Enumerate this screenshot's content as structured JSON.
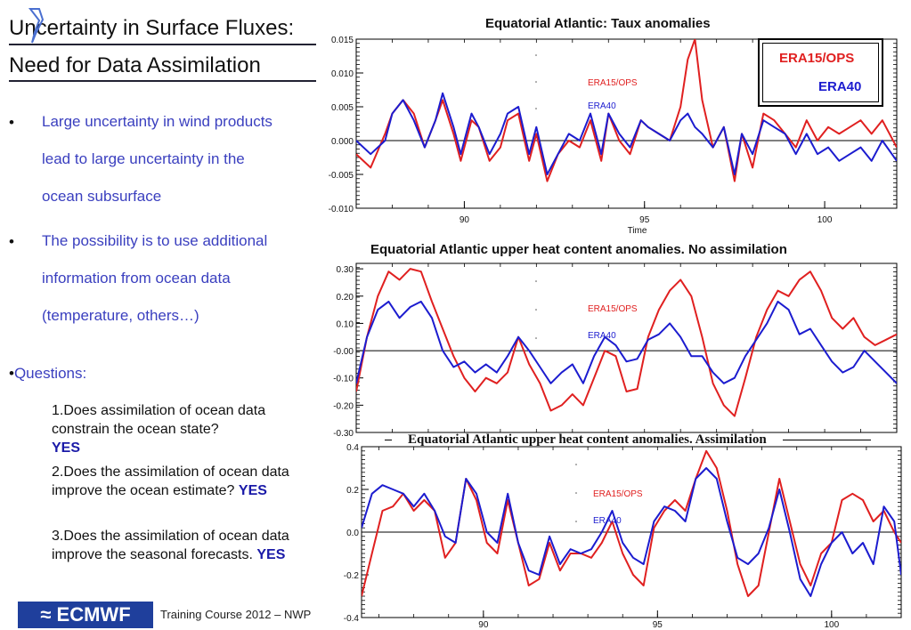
{
  "slide": {
    "title_line1": "Uncertainty in Surface Fluxes:",
    "title_line2": "Need for Data Assimilation",
    "bullets": [
      {
        "lines": [
          "Large uncertainty in wind products",
          "lead to large uncertainty in the",
          "ocean subsurface"
        ]
      },
      {
        "lines": [
          "The possibility is to use  additional",
          "information from ocean data",
          "(temperature, others…)"
        ]
      }
    ],
    "bullet_glyph": "•",
    "questions_label": "Questions:",
    "questions": [
      {
        "text": "1.Does assimilation of ocean data constrain the ocean state?",
        "answer": "YES"
      },
      {
        "text": "2.Does the assimilation of ocean data improve the ocean estimate?",
        "answer": "YES"
      },
      {
        "text": "3.Does the assimilation of ocean data  improve the seasonal forecasts.",
        "answer": "YES"
      }
    ],
    "footer_logo": "ECMWF",
    "footer_text": "Training Course 2012 – NWP"
  },
  "colors": {
    "era15": "#e02020",
    "era40": "#1c1ccf",
    "text_blue": "#3a3fbf",
    "logo_bg": "#1f3f9c"
  },
  "legend_box": {
    "entries": [
      {
        "name": "ERA15/OPS",
        "color": "#e02020"
      },
      {
        "name": "ERA40",
        "color": "#1c1ccf"
      }
    ]
  },
  "chart_data": [
    {
      "type": "line",
      "title": "Equatorial Atlantic: Taux anomalies",
      "xlabel": "Time",
      "ylabel": "",
      "xlim": [
        87,
        102
      ],
      "ylim": [
        -0.01,
        0.015
      ],
      "xticks": [
        90,
        95,
        100
      ],
      "xtick_labels": [
        "90",
        "95",
        "100"
      ],
      "yticks": [
        -0.01,
        -0.005,
        0.0,
        0.005,
        0.01,
        0.015
      ],
      "ytick_labels": [
        "-0.010",
        "-0.005",
        "0.000",
        "0.005",
        "0.010",
        "0.015"
      ],
      "zero_line": true,
      "series": [
        {
          "name": "ERA15/OPS",
          "color": "#e02020",
          "x": [
            87.0,
            87.4,
            87.8,
            88.0,
            88.3,
            88.6,
            88.9,
            89.2,
            89.4,
            89.7,
            89.9,
            90.2,
            90.4,
            90.7,
            91.0,
            91.2,
            91.5,
            91.8,
            92.0,
            92.3,
            92.6,
            92.9,
            93.2,
            93.5,
            93.8,
            94.0,
            94.3,
            94.6,
            94.9,
            95.1,
            95.4,
            95.7,
            96.0,
            96.2,
            96.4,
            96.6,
            96.9,
            97.2,
            97.5,
            97.7,
            98.0,
            98.3,
            98.6,
            98.9,
            99.2,
            99.5,
            99.8,
            100.1,
            100.4,
            100.7,
            101.0,
            101.3,
            101.6,
            102.0
          ],
          "y": [
            -0.002,
            -0.004,
            0.001,
            0.004,
            0.006,
            0.004,
            -0.001,
            0.003,
            0.006,
            0.001,
            -0.003,
            0.003,
            0.002,
            -0.003,
            -0.001,
            0.003,
            0.004,
            -0.003,
            0.001,
            -0.006,
            -0.002,
            0.0,
            -0.001,
            0.003,
            -0.003,
            0.004,
            0.0,
            -0.002,
            0.003,
            0.002,
            0.001,
            0.0,
            0.005,
            0.012,
            0.015,
            0.006,
            -0.001,
            0.002,
            -0.006,
            0.001,
            -0.004,
            0.004,
            0.003,
            0.001,
            -0.001,
            0.003,
            0.0,
            0.002,
            0.001,
            0.002,
            0.003,
            0.001,
            0.003,
            -0.001
          ]
        },
        {
          "name": "ERA40",
          "color": "#1c1ccf",
          "x": [
            87.0,
            87.4,
            87.8,
            88.0,
            88.3,
            88.6,
            88.9,
            89.2,
            89.4,
            89.7,
            89.9,
            90.2,
            90.4,
            90.7,
            91.0,
            91.2,
            91.5,
            91.8,
            92.0,
            92.3,
            92.6,
            92.9,
            93.2,
            93.5,
            93.8,
            94.0,
            94.3,
            94.6,
            94.9,
            95.1,
            95.4,
            95.7,
            96.0,
            96.2,
            96.4,
            96.6,
            96.9,
            97.2,
            97.5,
            97.7,
            98.0,
            98.3,
            98.6,
            98.9,
            99.2,
            99.5,
            99.8,
            100.1,
            100.4,
            100.7,
            101.0,
            101.3,
            101.6,
            102.0
          ],
          "y": [
            0.0,
            -0.002,
            0.0,
            0.004,
            0.006,
            0.003,
            -0.001,
            0.003,
            0.007,
            0.002,
            -0.002,
            0.004,
            0.002,
            -0.002,
            0.001,
            0.004,
            0.005,
            -0.002,
            0.002,
            -0.005,
            -0.002,
            0.001,
            0.0,
            0.004,
            -0.002,
            0.004,
            0.001,
            -0.001,
            0.003,
            0.002,
            0.001,
            0.0,
            0.003,
            0.004,
            0.002,
            0.001,
            -0.001,
            0.002,
            -0.005,
            0.001,
            -0.002,
            0.003,
            0.002,
            0.001,
            -0.002,
            0.001,
            -0.002,
            -0.001,
            -0.003,
            -0.002,
            -0.001,
            -0.003,
            0.0,
            -0.003
          ]
        }
      ],
      "inline_labels": [
        {
          "text": "ERA15/OPS",
          "color": "#e02020"
        },
        {
          "text": "ERA40",
          "color": "#1c1ccf"
        }
      ]
    },
    {
      "type": "line",
      "title": "Equatorial Atlantic upper heat content  anomalies. No assimilation",
      "xlabel": "",
      "ylabel": "",
      "xlim": [
        87,
        102
      ],
      "ylim": [
        -0.3,
        0.32
      ],
      "yticks": [
        -0.3,
        -0.2,
        -0.1,
        0.0,
        0.1,
        0.2,
        0.3
      ],
      "ytick_labels": [
        "-0.30",
        "-0.20",
        "-0.10",
        "-0.00",
        "0.10",
        "0.20",
        "0.30"
      ],
      "zero_line": true,
      "series": [
        {
          "name": "ERA15/OPS",
          "color": "#e02020",
          "x": [
            87.0,
            87.3,
            87.6,
            87.9,
            88.2,
            88.5,
            88.8,
            89.1,
            89.4,
            89.7,
            90.0,
            90.3,
            90.6,
            90.9,
            91.2,
            91.5,
            91.8,
            92.1,
            92.4,
            92.7,
            93.0,
            93.3,
            93.6,
            93.9,
            94.2,
            94.5,
            94.8,
            95.1,
            95.4,
            95.7,
            96.0,
            96.3,
            96.6,
            96.9,
            97.2,
            97.5,
            97.8,
            98.1,
            98.4,
            98.7,
            99.0,
            99.3,
            99.6,
            99.9,
            100.2,
            100.5,
            100.8,
            101.1,
            101.4,
            101.7,
            102.0
          ],
          "y": [
            -0.15,
            0.05,
            0.2,
            0.29,
            0.26,
            0.3,
            0.29,
            0.18,
            0.08,
            -0.02,
            -0.1,
            -0.15,
            -0.1,
            -0.12,
            -0.08,
            0.05,
            -0.05,
            -0.12,
            -0.22,
            -0.2,
            -0.16,
            -0.2,
            -0.1,
            0.0,
            -0.02,
            -0.15,
            -0.14,
            0.05,
            0.15,
            0.22,
            0.26,
            0.2,
            0.05,
            -0.12,
            -0.2,
            -0.24,
            -0.1,
            0.05,
            0.15,
            0.22,
            0.2,
            0.26,
            0.29,
            0.22,
            0.12,
            0.08,
            0.12,
            0.05,
            0.02,
            0.04,
            0.06
          ]
        },
        {
          "name": "ERA40",
          "color": "#1c1ccf",
          "x": [
            87.0,
            87.3,
            87.6,
            87.9,
            88.2,
            88.5,
            88.8,
            89.1,
            89.4,
            89.7,
            90.0,
            90.3,
            90.6,
            90.9,
            91.2,
            91.5,
            91.8,
            92.1,
            92.4,
            92.7,
            93.0,
            93.3,
            93.6,
            93.9,
            94.2,
            94.5,
            94.8,
            95.1,
            95.4,
            95.7,
            96.0,
            96.3,
            96.6,
            96.9,
            97.2,
            97.5,
            97.8,
            98.1,
            98.4,
            98.7,
            99.0,
            99.3,
            99.6,
            99.9,
            100.2,
            100.5,
            100.8,
            101.1,
            101.4,
            101.7,
            102.0
          ],
          "y": [
            -0.12,
            0.05,
            0.15,
            0.18,
            0.12,
            0.16,
            0.18,
            0.12,
            0.0,
            -0.06,
            -0.04,
            -0.08,
            -0.05,
            -0.08,
            -0.02,
            0.05,
            0.0,
            -0.06,
            -0.12,
            -0.08,
            -0.05,
            -0.12,
            -0.02,
            0.05,
            0.02,
            -0.04,
            -0.03,
            0.04,
            0.06,
            0.1,
            0.05,
            -0.02,
            -0.02,
            -0.08,
            -0.12,
            -0.1,
            -0.02,
            0.04,
            0.1,
            0.18,
            0.15,
            0.06,
            0.08,
            0.02,
            -0.04,
            -0.08,
            -0.06,
            0.0,
            -0.04,
            -0.08,
            -0.12
          ]
        }
      ],
      "inline_labels": [
        {
          "text": "ERA15/OPS",
          "color": "#e02020"
        },
        {
          "text": "ERA40",
          "color": "#1c1ccf"
        }
      ]
    },
    {
      "type": "line",
      "title": "Equatorial  Atlantic upper heat content anomalies.  Assimilation",
      "xlabel": "",
      "ylabel": "",
      "xlim": [
        86.5,
        102
      ],
      "ylim": [
        -0.4,
        0.4
      ],
      "xticks": [
        90,
        95,
        100
      ],
      "xtick_labels": [
        "90",
        "95",
        "100"
      ],
      "yticks": [
        -0.4,
        -0.2,
        0.0,
        0.2,
        0.4
      ],
      "ytick_labels": [
        "-0.4",
        "-0.2",
        "0.0",
        "0.2",
        "0.4"
      ],
      "zero_line": true,
      "series": [
        {
          "name": "ERA15/OPS",
          "color": "#e02020",
          "x": [
            86.5,
            86.8,
            87.1,
            87.4,
            87.7,
            88.0,
            88.3,
            88.6,
            88.9,
            89.2,
            89.5,
            89.8,
            90.1,
            90.4,
            90.7,
            91.0,
            91.3,
            91.6,
            91.9,
            92.2,
            92.5,
            92.8,
            93.1,
            93.4,
            93.7,
            94.0,
            94.3,
            94.6,
            94.9,
            95.2,
            95.5,
            95.8,
            96.1,
            96.4,
            96.7,
            97.0,
            97.3,
            97.6,
            97.9,
            98.2,
            98.5,
            98.8,
            99.1,
            99.4,
            99.7,
            100.0,
            100.3,
            100.6,
            100.9,
            101.2,
            101.5,
            101.8,
            102.0
          ],
          "y": [
            -0.3,
            -0.1,
            0.1,
            0.12,
            0.18,
            0.1,
            0.15,
            0.1,
            -0.12,
            -0.05,
            0.25,
            0.15,
            -0.05,
            -0.1,
            0.15,
            -0.05,
            -0.25,
            -0.22,
            -0.05,
            -0.18,
            -0.1,
            -0.1,
            -0.12,
            -0.05,
            0.05,
            -0.1,
            -0.2,
            -0.25,
            0.02,
            0.1,
            0.15,
            0.1,
            0.25,
            0.38,
            0.3,
            0.1,
            -0.15,
            -0.3,
            -0.25,
            0.0,
            0.25,
            0.05,
            -0.15,
            -0.25,
            -0.1,
            -0.05,
            0.15,
            0.18,
            0.15,
            0.05,
            0.1,
            0.0,
            -0.05
          ]
        },
        {
          "name": "ERA40",
          "color": "#1c1ccf",
          "x": [
            86.5,
            86.8,
            87.1,
            87.4,
            87.7,
            88.0,
            88.3,
            88.6,
            88.9,
            89.2,
            89.5,
            89.8,
            90.1,
            90.4,
            90.7,
            91.0,
            91.3,
            91.6,
            91.9,
            92.2,
            92.5,
            92.8,
            93.1,
            93.4,
            93.7,
            94.0,
            94.3,
            94.6,
            94.9,
            95.2,
            95.5,
            95.8,
            96.1,
            96.4,
            96.7,
            97.0,
            97.3,
            97.6,
            97.9,
            98.2,
            98.5,
            98.8,
            99.1,
            99.4,
            99.7,
            100.0,
            100.3,
            100.6,
            100.9,
            101.2,
            101.5,
            101.8,
            102.0
          ],
          "y": [
            0.02,
            0.18,
            0.22,
            0.2,
            0.18,
            0.12,
            0.18,
            0.1,
            -0.02,
            -0.05,
            0.25,
            0.18,
            0.0,
            -0.05,
            0.18,
            -0.05,
            -0.18,
            -0.2,
            -0.02,
            -0.15,
            -0.08,
            -0.1,
            -0.08,
            0.0,
            0.1,
            -0.05,
            -0.12,
            -0.15,
            0.05,
            0.12,
            0.1,
            0.05,
            0.25,
            0.3,
            0.25,
            0.05,
            -0.12,
            -0.15,
            -0.1,
            0.02,
            0.2,
            0.0,
            -0.22,
            -0.3,
            -0.15,
            -0.05,
            0.0,
            -0.1,
            -0.05,
            -0.15,
            0.12,
            0.05,
            -0.2
          ]
        }
      ],
      "inline_labels": [
        {
          "text": "ERA15/OPS",
          "color": "#e02020"
        },
        {
          "text": "ERA40",
          "color": "#1c1ccf"
        }
      ]
    }
  ]
}
